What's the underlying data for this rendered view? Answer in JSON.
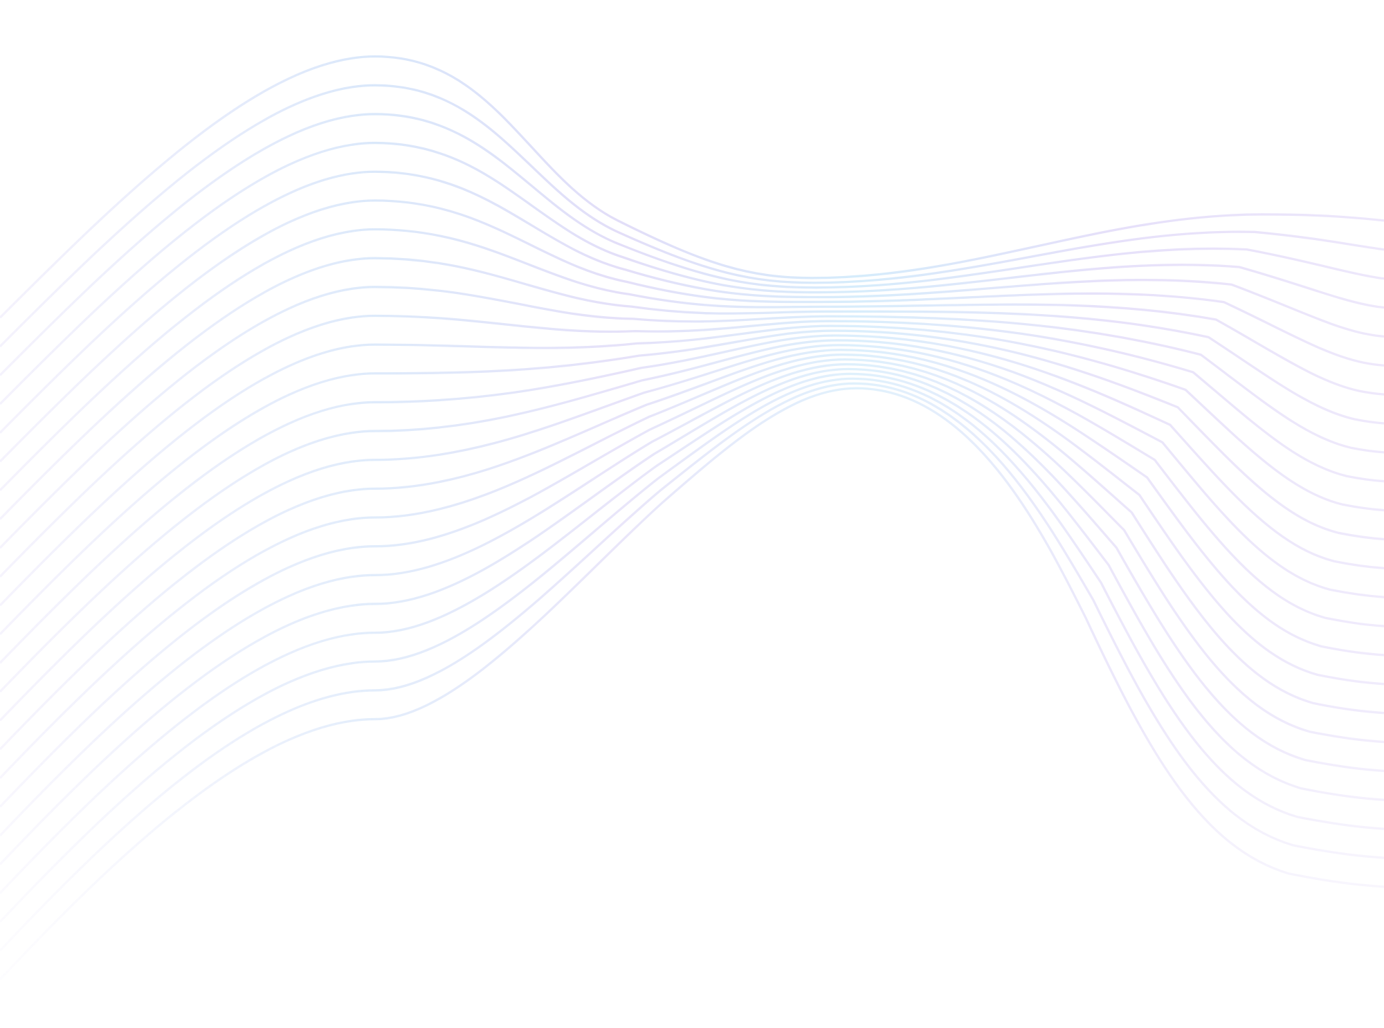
{
  "background": "#ffffff",
  "artwork": {
    "type": "decorative-wave-lines",
    "line_count": 24,
    "colors": {
      "blue": "#cfe7fa",
      "lavender": "#e3dcf8",
      "fade": "#ffffff"
    }
  }
}
